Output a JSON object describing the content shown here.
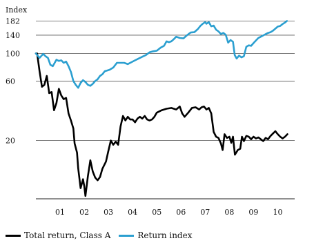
{
  "chart_data": {
    "type": "line",
    "ylabel": "Index",
    "y_scale": "log",
    "ylim": [
      7,
      190
    ],
    "xlim": [
      2000.0,
      2010.7
    ],
    "y_ticks": [
      20,
      60,
      100,
      140,
      182
    ],
    "x_tick_labels": [
      {
        "label": "01",
        "x": 2001.0
      },
      {
        "label": "02",
        "x": 2002.0
      },
      {
        "label": "03",
        "x": 2003.0
      },
      {
        "label": "04",
        "x": 2004.0
      },
      {
        "label": "05",
        "x": 2005.0
      },
      {
        "label": "06",
        "x": 2006.0
      },
      {
        "label": "07",
        "x": 2007.0
      },
      {
        "label": "08",
        "x": 2008.0
      },
      {
        "label": "09",
        "x": 2009.0
      },
      {
        "label": "10",
        "x": 2010.0
      }
    ],
    "grid": "horizontal",
    "legend_position": "bottom-left",
    "series": [
      {
        "name": "Total return, Class A",
        "color": "#000000",
        "points": [
          [
            2000.0,
            100
          ],
          [
            2000.05,
            100
          ],
          [
            2000.15,
            72
          ],
          [
            2000.25,
            54
          ],
          [
            2000.35,
            56
          ],
          [
            2000.45,
            66
          ],
          [
            2000.55,
            48
          ],
          [
            2000.65,
            49
          ],
          [
            2000.75,
            35
          ],
          [
            2000.85,
            40
          ],
          [
            2000.95,
            52
          ],
          [
            2001.05,
            46
          ],
          [
            2001.15,
            43
          ],
          [
            2001.25,
            44
          ],
          [
            2001.35,
            33
          ],
          [
            2001.45,
            29
          ],
          [
            2001.55,
            25
          ],
          [
            2001.6,
            19
          ],
          [
            2001.7,
            16
          ],
          [
            2001.75,
            12
          ],
          [
            2001.85,
            8.3
          ],
          [
            2001.95,
            9.8
          ],
          [
            2002.0,
            8.6
          ],
          [
            2002.05,
            7.2
          ],
          [
            2002.15,
            10.4
          ],
          [
            2002.25,
            13.9
          ],
          [
            2002.35,
            11.3
          ],
          [
            2002.45,
            10.1
          ],
          [
            2002.55,
            9.6
          ],
          [
            2002.65,
            10.2
          ],
          [
            2002.75,
            11.9
          ],
          [
            2002.9,
            13.6
          ],
          [
            2003.0,
            16.6
          ],
          [
            2003.1,
            20.0
          ],
          [
            2003.2,
            18.5
          ],
          [
            2003.3,
            19.6
          ],
          [
            2003.4,
            18.5
          ],
          [
            2003.5,
            26.0
          ],
          [
            2003.6,
            31.5
          ],
          [
            2003.7,
            29.0
          ],
          [
            2003.8,
            31.0
          ],
          [
            2003.9,
            29.5
          ],
          [
            2004.0,
            29.5
          ],
          [
            2004.1,
            28.0
          ],
          [
            2004.2,
            30.0
          ],
          [
            2004.3,
            31.0
          ],
          [
            2004.4,
            30.0
          ],
          [
            2004.5,
            31.5
          ],
          [
            2004.6,
            29.5
          ],
          [
            2004.7,
            29.0
          ],
          [
            2004.8,
            29.5
          ],
          [
            2004.9,
            31.0
          ],
          [
            2005.0,
            33.5
          ],
          [
            2005.2,
            35.0
          ],
          [
            2005.4,
            36.0
          ],
          [
            2005.6,
            36.5
          ],
          [
            2005.8,
            35.5
          ],
          [
            2005.95,
            37.5
          ],
          [
            2006.05,
            33.0
          ],
          [
            2006.15,
            31.0
          ],
          [
            2006.3,
            33.5
          ],
          [
            2006.45,
            36.5
          ],
          [
            2006.6,
            37.0
          ],
          [
            2006.75,
            35.5
          ],
          [
            2006.85,
            37.0
          ],
          [
            2006.95,
            37.5
          ],
          [
            2007.05,
            35.5
          ],
          [
            2007.15,
            36.5
          ],
          [
            2007.25,
            33.0
          ],
          [
            2007.35,
            23.5
          ],
          [
            2007.45,
            21.5
          ],
          [
            2007.55,
            21.0
          ],
          [
            2007.65,
            19.0
          ],
          [
            2007.72,
            16.8
          ],
          [
            2007.8,
            22.5
          ],
          [
            2007.9,
            21.0
          ],
          [
            2008.0,
            21.5
          ],
          [
            2008.08,
            19.2
          ],
          [
            2008.15,
            21.5
          ],
          [
            2008.23,
            15.4
          ],
          [
            2008.35,
            16.8
          ],
          [
            2008.45,
            17.2
          ],
          [
            2008.52,
            21.5
          ],
          [
            2008.6,
            19.8
          ],
          [
            2008.7,
            21.8
          ],
          [
            2008.8,
            21.5
          ],
          [
            2008.9,
            20.5
          ],
          [
            2009.0,
            21.5
          ],
          [
            2009.1,
            20.8
          ],
          [
            2009.2,
            21.2
          ],
          [
            2009.3,
            20.5
          ],
          [
            2009.4,
            19.8
          ],
          [
            2009.5,
            21.0
          ],
          [
            2009.6,
            20.5
          ],
          [
            2009.7,
            21.8
          ],
          [
            2009.8,
            22.8
          ],
          [
            2009.9,
            23.8
          ],
          [
            2010.0,
            22.5
          ],
          [
            2010.1,
            21.5
          ],
          [
            2010.2,
            20.8
          ],
          [
            2010.3,
            21.5
          ],
          [
            2010.4,
            22.5
          ]
        ]
      },
      {
        "name": "Return index",
        "color": "#2b9fd0",
        "points": [
          [
            2000.0,
            100
          ],
          [
            2000.15,
            92
          ],
          [
            2000.3,
            99
          ],
          [
            2000.4,
            95
          ],
          [
            2000.5,
            92
          ],
          [
            2000.6,
            81
          ],
          [
            2000.7,
            79
          ],
          [
            2000.85,
            89
          ],
          [
            2000.95,
            87
          ],
          [
            2001.05,
            88
          ],
          [
            2001.15,
            84
          ],
          [
            2001.25,
            86
          ],
          [
            2001.35,
            79
          ],
          [
            2001.45,
            71
          ],
          [
            2001.55,
            60
          ],
          [
            2001.65,
            56
          ],
          [
            2001.75,
            53
          ],
          [
            2001.85,
            58
          ],
          [
            2001.95,
            61
          ],
          [
            2002.05,
            59
          ],
          [
            2002.15,
            56
          ],
          [
            2002.25,
            55
          ],
          [
            2002.35,
            57
          ],
          [
            2002.45,
            60
          ],
          [
            2002.55,
            62
          ],
          [
            2002.65,
            66
          ],
          [
            2002.75,
            68
          ],
          [
            2002.85,
            72
          ],
          [
            2002.95,
            73
          ],
          [
            2003.05,
            74
          ],
          [
            2003.2,
            77
          ],
          [
            2003.35,
            84
          ],
          [
            2003.5,
            84
          ],
          [
            2003.65,
            84
          ],
          [
            2003.8,
            82
          ],
          [
            2003.95,
            85
          ],
          [
            2004.1,
            88
          ],
          [
            2004.25,
            91
          ],
          [
            2004.4,
            94
          ],
          [
            2004.55,
            97
          ],
          [
            2004.7,
            102
          ],
          [
            2004.85,
            104
          ],
          [
            2005.0,
            105
          ],
          [
            2005.15,
            111
          ],
          [
            2005.3,
            115
          ],
          [
            2005.4,
            125
          ],
          [
            2005.5,
            123
          ],
          [
            2005.6,
            125
          ],
          [
            2005.7,
            130
          ],
          [
            2005.8,
            136
          ],
          [
            2005.95,
            133
          ],
          [
            2006.1,
            132
          ],
          [
            2006.25,
            140
          ],
          [
            2006.4,
            147
          ],
          [
            2006.55,
            148
          ],
          [
            2006.7,
            157
          ],
          [
            2006.8,
            166
          ],
          [
            2006.9,
            173
          ],
          [
            2007.0,
            178
          ],
          [
            2007.05,
            173
          ],
          [
            2007.15,
            178
          ],
          [
            2007.25,
            165
          ],
          [
            2007.35,
            167
          ],
          [
            2007.45,
            155
          ],
          [
            2007.55,
            150
          ],
          [
            2007.65,
            143
          ],
          [
            2007.75,
            146
          ],
          [
            2007.85,
            141
          ],
          [
            2007.95,
            122
          ],
          [
            2008.05,
            128
          ],
          [
            2008.15,
            124
          ],
          [
            2008.22,
            97
          ],
          [
            2008.3,
            91
          ],
          [
            2008.4,
            96
          ],
          [
            2008.5,
            93
          ],
          [
            2008.6,
            95
          ],
          [
            2008.7,
            113
          ],
          [
            2008.8,
            116
          ],
          [
            2008.9,
            115
          ],
          [
            2009.0,
            121
          ],
          [
            2009.1,
            127
          ],
          [
            2009.2,
            133
          ],
          [
            2009.3,
            136
          ],
          [
            2009.45,
            141
          ],
          [
            2009.6,
            146
          ],
          [
            2009.7,
            148
          ],
          [
            2009.8,
            152
          ],
          [
            2009.9,
            158
          ],
          [
            2010.0,
            164
          ],
          [
            2010.1,
            166
          ],
          [
            2010.2,
            172
          ],
          [
            2010.3,
            177
          ],
          [
            2010.38,
            182
          ]
        ]
      }
    ]
  }
}
